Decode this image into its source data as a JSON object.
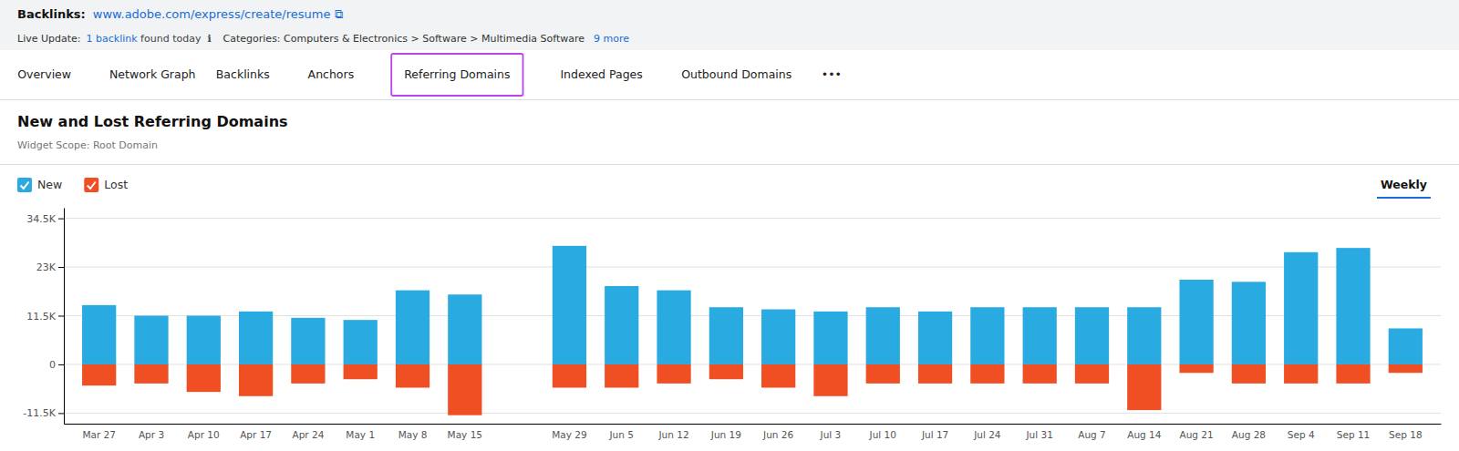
{
  "chart_data": {
    "type": "bar",
    "title": "New and Lost Referring Domains",
    "subtitle": "Widget Scope: Root Domain",
    "annotations": [
      "Backlinks:",
      "www.adobe.com/express/create/resume ⧉",
      "Live Update:",
      "1 backlink",
      " found today  ℹ  ",
      "Categories: Computers & Electronics > Software > Multimedia Software",
      "9 more",
      "Overview",
      "Network Graph",
      "Backlinks",
      "Anchors",
      "Referring Domains",
      "Indexed Pages",
      "Outbound Domains",
      "•••",
      "Weekly"
    ],
    "categories": [
      "Mar 27",
      "Apr 3",
      "Apr 10",
      "Apr 17",
      "Apr 24",
      "May 1",
      "May 8",
      "May 15",
      null,
      "May 29",
      "Jun 5",
      "Jun 12",
      "Jun 19",
      "Jun 26",
      "Jul 3",
      "Jul 10",
      "Jul 17",
      "Jul 24",
      "Jul 31",
      "Aug 7",
      "Aug 14",
      "Aug 21",
      "Aug 28",
      "Sep 4",
      "Sep 11",
      "Sep 18"
    ],
    "series": [
      {
        "name": "New",
        "color": "#29ABE2",
        "values": [
          14000,
          11500,
          11500,
          12500,
          11000,
          10500,
          17500,
          16500,
          0,
          28000,
          18500,
          17500,
          13500,
          13000,
          12500,
          13500,
          12500,
          13500,
          13500,
          13500,
          13500,
          20000,
          19500,
          26500,
          27500,
          8500
        ]
      },
      {
        "name": "Lost",
        "color": "#F04E23",
        "values": [
          -5000,
          -4500,
          -6500,
          -7500,
          -4500,
          -3500,
          -5500,
          -12000,
          0,
          -5500,
          -5500,
          -4500,
          -3500,
          -5500,
          -7500,
          -4500,
          -4500,
          -4500,
          -4500,
          -4500,
          -10800,
          -2000,
          -4500,
          -4500,
          -4500,
          -2000
        ]
      }
    ],
    "ylim": [
      -14000,
      37000
    ],
    "yticks": [
      {
        "value": -11500,
        "label": "-11.5K"
      },
      0,
      {
        "value": 11500,
        "label": "11.5K"
      },
      {
        "value": 23000,
        "label": "23K"
      },
      {
        "value": 34500,
        "label": "34.5K"
      }
    ],
    "grid": true,
    "legend": "top-left",
    "stacked": true
  }
}
